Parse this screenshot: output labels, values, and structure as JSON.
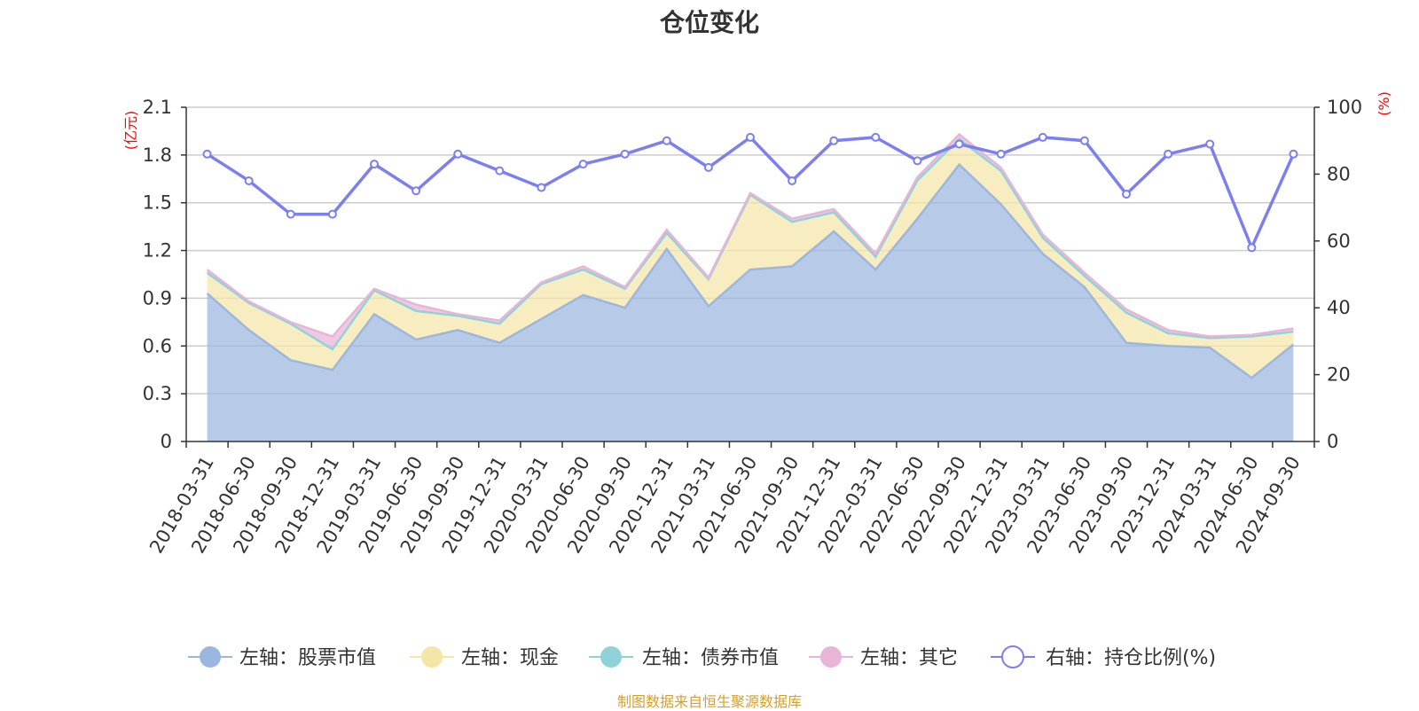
{
  "chart_data": {
    "type": "area",
    "title": "仓位变化",
    "source": "制图数据来自恒生聚源数据库",
    "left_axis": {
      "unit": "(亿元)",
      "ticks": [
        "0",
        "0.3",
        "0.6",
        "0.9",
        "1.2",
        "1.5",
        "1.8",
        "2.1"
      ],
      "range": [
        0,
        2.1
      ]
    },
    "right_axis": {
      "unit": "(%)",
      "ticks": [
        "0",
        "20",
        "40",
        "60",
        "80",
        "100"
      ],
      "range": [
        0,
        100
      ]
    },
    "categories": [
      "2018-03-31",
      "2018-06-30",
      "2018-09-30",
      "2018-12-31",
      "2019-03-31",
      "2019-06-30",
      "2019-09-30",
      "2019-12-31",
      "2020-03-31",
      "2020-06-30",
      "2020-09-30",
      "2020-12-31",
      "2021-03-31",
      "2021-06-30",
      "2021-09-30",
      "2021-12-31",
      "2022-03-31",
      "2022-06-30",
      "2022-09-30",
      "2022-12-31",
      "2023-03-31",
      "2023-06-30",
      "2023-09-30",
      "2023-12-31",
      "2024-03-31",
      "2024-06-30",
      "2024-09-30"
    ],
    "series": [
      {
        "name": "左轴：股票市值",
        "axis": "left",
        "color": "#9bb7e0",
        "values": [
          0.93,
          0.7,
          0.51,
          0.45,
          0.8,
          0.64,
          0.7,
          0.62,
          0.77,
          0.92,
          0.84,
          1.21,
          0.85,
          1.08,
          1.1,
          1.32,
          1.08,
          1.4,
          1.74,
          1.49,
          1.18,
          0.97,
          0.62,
          0.6,
          0.59,
          0.4,
          0.61
        ]
      },
      {
        "name": "左轴：现金",
        "axis": "left",
        "color": "#f5e6a8",
        "values": [
          0.13,
          0.17,
          0.23,
          0.13,
          0.15,
          0.18,
          0.09,
          0.12,
          0.22,
          0.16,
          0.12,
          0.1,
          0.17,
          0.47,
          0.28,
          0.12,
          0.08,
          0.24,
          0.16,
          0.21,
          0.1,
          0.07,
          0.19,
          0.08,
          0.06,
          0.26,
          0.08
        ]
      },
      {
        "name": "左轴：债券市值",
        "axis": "left",
        "color": "#8fd3d8",
        "values": [
          0,
          0,
          0,
          0,
          0,
          0,
          0,
          0,
          0,
          0,
          0,
          0,
          0,
          0,
          0,
          0,
          0,
          0,
          0,
          0,
          0,
          0,
          0,
          0,
          0,
          0,
          0
        ]
      },
      {
        "name": "左轴：其它",
        "axis": "left",
        "color": "#e8b4d8",
        "values": [
          0.02,
          0.01,
          0.01,
          0.08,
          0.01,
          0.04,
          0.01,
          0.02,
          0.01,
          0.02,
          0.01,
          0.02,
          0.01,
          0.01,
          0.02,
          0.02,
          0.02,
          0.02,
          0.03,
          0.02,
          0.02,
          0.02,
          0.02,
          0.02,
          0.01,
          0.01,
          0.02
        ]
      },
      {
        "name": "右轴：持仓比例(%)",
        "axis": "right",
        "color": "#7b7ff0",
        "values": [
          86,
          78,
          68,
          68,
          83,
          75,
          86,
          81,
          76,
          83,
          86,
          90,
          82,
          91,
          78,
          90,
          91,
          84,
          89,
          86,
          91,
          90,
          74,
          86,
          89,
          58,
          86
        ]
      }
    ]
  }
}
